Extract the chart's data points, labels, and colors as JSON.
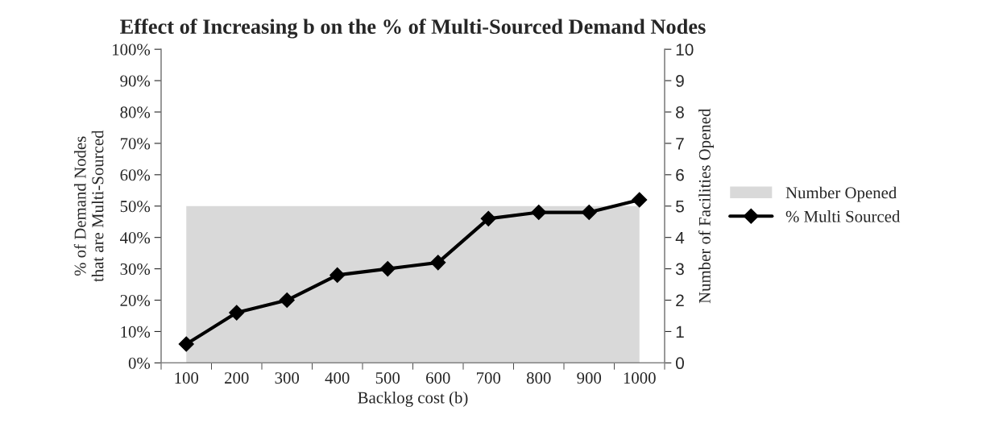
{
  "chart_data": {
    "type": "line",
    "title": "Effect of Increasing b on the % of Multi-Sourced Demand Nodes",
    "xlabel": "Backlog cost (b)",
    "ylabel": "% of Demand Nodes\nthat are Multi-Sourced",
    "y2label": "Number of Facilities Opened",
    "categories": [
      "100",
      "200",
      "300",
      "400",
      "500",
      "600",
      "700",
      "800",
      "900",
      "1000"
    ],
    "series": [
      {
        "name": "Number Opened",
        "type": "area",
        "axis": "y2",
        "color": "#d9d9d9",
        "values": [
          5,
          5,
          5,
          5,
          5,
          5,
          5,
          5,
          5,
          5
        ]
      },
      {
        "name": "% Multi Sourced",
        "color": "#000000",
        "marker": "diamond",
        "values": [
          6,
          16,
          20,
          28,
          30,
          32,
          46,
          48,
          48,
          52
        ]
      }
    ],
    "ylim": [
      0,
      100
    ],
    "yticks": [
      {
        "value": 0,
        "label": "0%"
      },
      {
        "value": 10,
        "label": "10%"
      },
      {
        "value": 20,
        "label": "20%"
      },
      {
        "value": 30,
        "label": "30%"
      },
      {
        "value": 40,
        "label": "40%"
      },
      {
        "value": 50,
        "label": "50%"
      },
      {
        "value": 60,
        "label": "60%"
      },
      {
        "value": 70,
        "label": "70%"
      },
      {
        "value": 80,
        "label": "80%"
      },
      {
        "value": 90,
        "label": "90%"
      },
      {
        "value": 100,
        "label": "100%"
      }
    ],
    "y2lim": [
      0,
      10
    ],
    "y2ticks": [
      0,
      1,
      2,
      3,
      4,
      5,
      6,
      7,
      8,
      9,
      10
    ],
    "grid": false,
    "legend": "right"
  }
}
